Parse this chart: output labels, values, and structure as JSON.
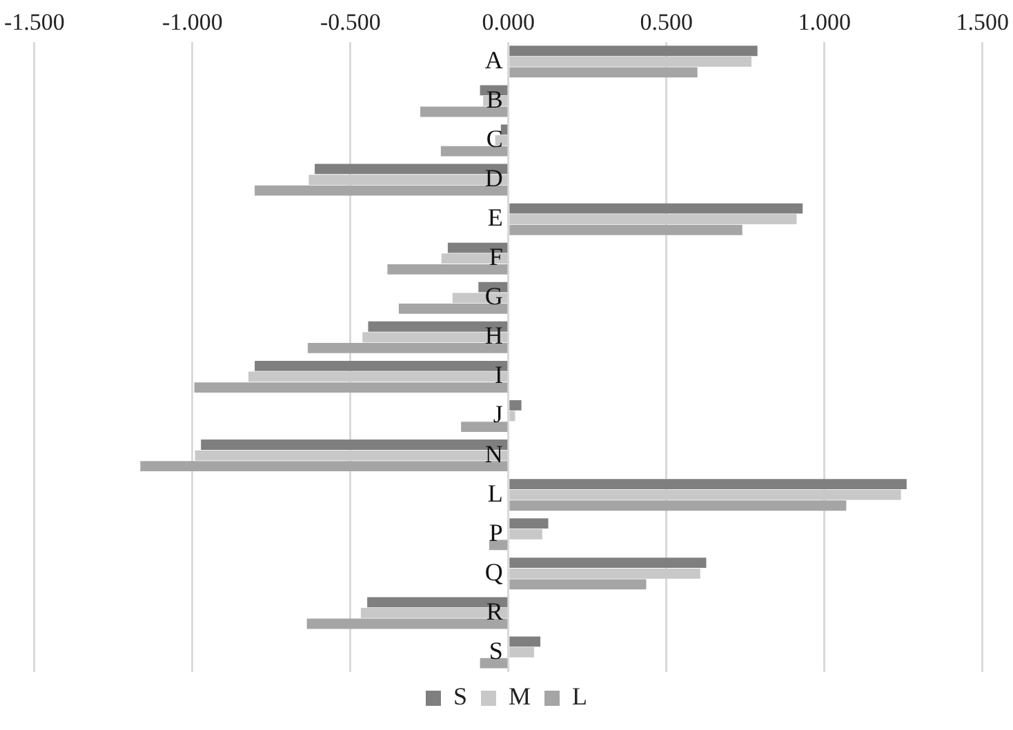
{
  "chart_data": {
    "type": "bar",
    "orientation": "horizontal",
    "categories": [
      "A",
      "B",
      "C",
      "D",
      "E",
      "F",
      "G",
      "H",
      "I",
      "J",
      "N",
      "L",
      "P",
      "Q",
      "R",
      "S"
    ],
    "series": [
      {
        "name": "S",
        "color": "#7f7f7f",
        "values": [
          0.788,
          -0.09,
          -0.024,
          -0.613,
          0.931,
          -0.192,
          -0.095,
          -0.444,
          -0.803,
          0.041,
          -0.973,
          1.26,
          0.126,
          0.626,
          -0.447,
          0.101
        ]
      },
      {
        "name": "M",
        "color": "#c8c8c8",
        "values": [
          0.769,
          -0.08,
          -0.042,
          -0.632,
          0.912,
          -0.212,
          -0.177,
          -0.462,
          -0.823,
          0.021,
          -0.992,
          1.242,
          0.107,
          0.607,
          -0.467,
          0.081
        ]
      },
      {
        "name": "L",
        "color": "#a5a5a5",
        "values": [
          0.598,
          -0.279,
          -0.214,
          -0.803,
          0.74,
          -0.383,
          -0.347,
          -0.635,
          -0.994,
          -0.15,
          -1.165,
          1.069,
          -0.061,
          0.436,
          -0.638,
          -0.09
        ]
      }
    ],
    "xlim": [
      -1.5,
      1.5
    ],
    "xticks": [
      {
        "value": -1.5,
        "label": "-1.500"
      },
      {
        "value": -1,
        "label": "-1.000"
      },
      {
        "value": -0.5,
        "label": "-0.500"
      },
      {
        "value": 0,
        "label": "0.000"
      },
      {
        "value": 0.5,
        "label": "0.500"
      },
      {
        "value": 1,
        "label": "1.000"
      },
      {
        "value": 1.5,
        "label": "1.500"
      }
    ],
    "grid": "x",
    "legend": "bottom"
  }
}
